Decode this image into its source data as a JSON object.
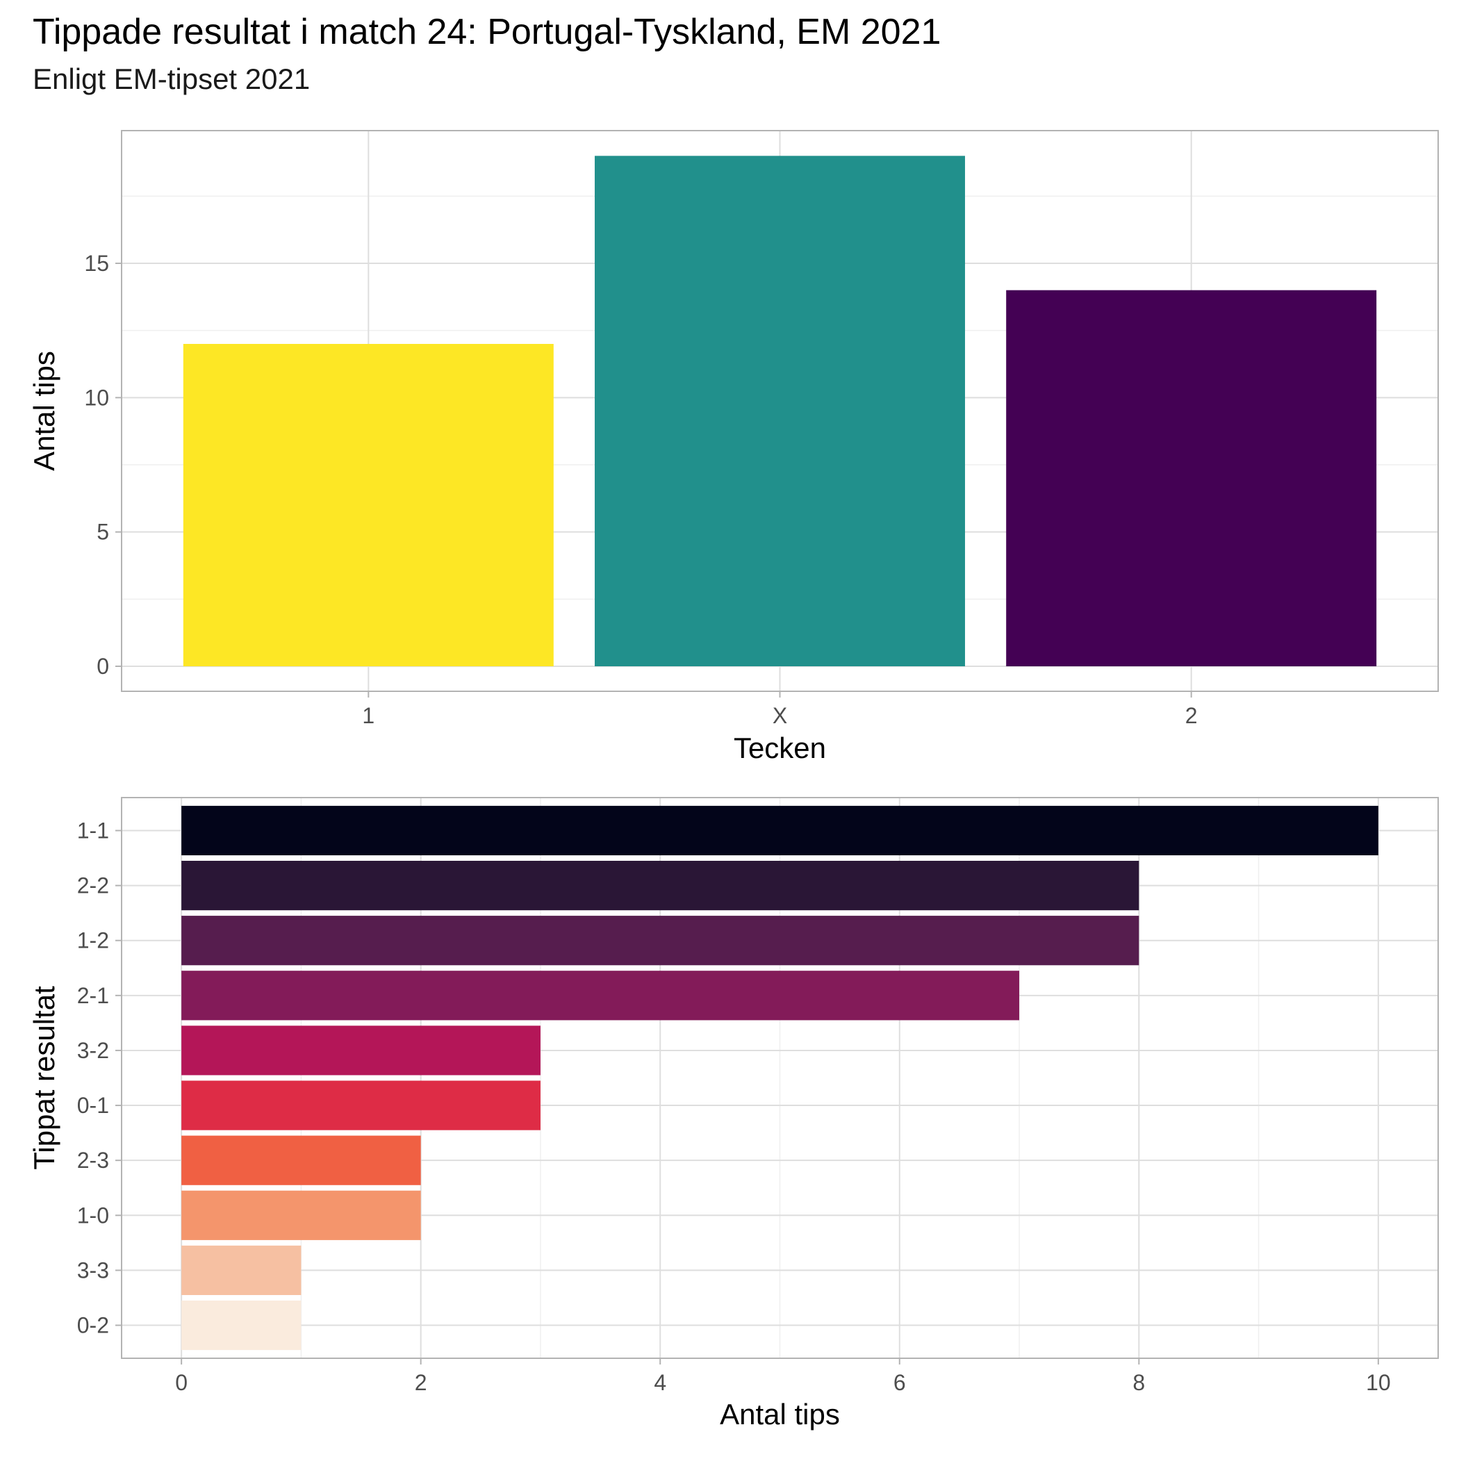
{
  "title": "Tippade resultat i match 24: Portugal-Tyskland, EM 2021",
  "subtitle": "Enligt EM-tipset 2021",
  "chart_data": [
    {
      "type": "bar",
      "orientation": "vertical",
      "categories": [
        "1",
        "X",
        "2"
      ],
      "values": [
        12,
        19,
        14
      ],
      "colors": [
        "#FDE725",
        "#21908C",
        "#440154"
      ],
      "xlabel": "Tecken",
      "ylabel": "Antal tips",
      "ylim": [
        0,
        20
      ],
      "yticks": [
        0,
        5,
        10,
        15
      ],
      "grid": true,
      "legend": "none"
    },
    {
      "type": "bar",
      "orientation": "horizontal",
      "categories": [
        "1-1",
        "2-2",
        "1-2",
        "2-1",
        "3-2",
        "0-1",
        "2-3",
        "1-0",
        "3-3",
        "0-2"
      ],
      "values": [
        10,
        8,
        8,
        7,
        3,
        3,
        2,
        2,
        1,
        1
      ],
      "colors": [
        "#03051A",
        "#2A1636",
        "#561D4E",
        "#831B59",
        "#B41658",
        "#DE2C46",
        "#F06043",
        "#F4956C",
        "#F6C0A2",
        "#FAEBDD"
      ],
      "xlabel": "Antal tips",
      "ylabel": "Tippat resultat",
      "xlim": [
        -0.5,
        10.5
      ],
      "xticks": [
        0,
        2,
        4,
        6,
        8,
        10
      ],
      "grid": true,
      "legend": "none"
    }
  ]
}
